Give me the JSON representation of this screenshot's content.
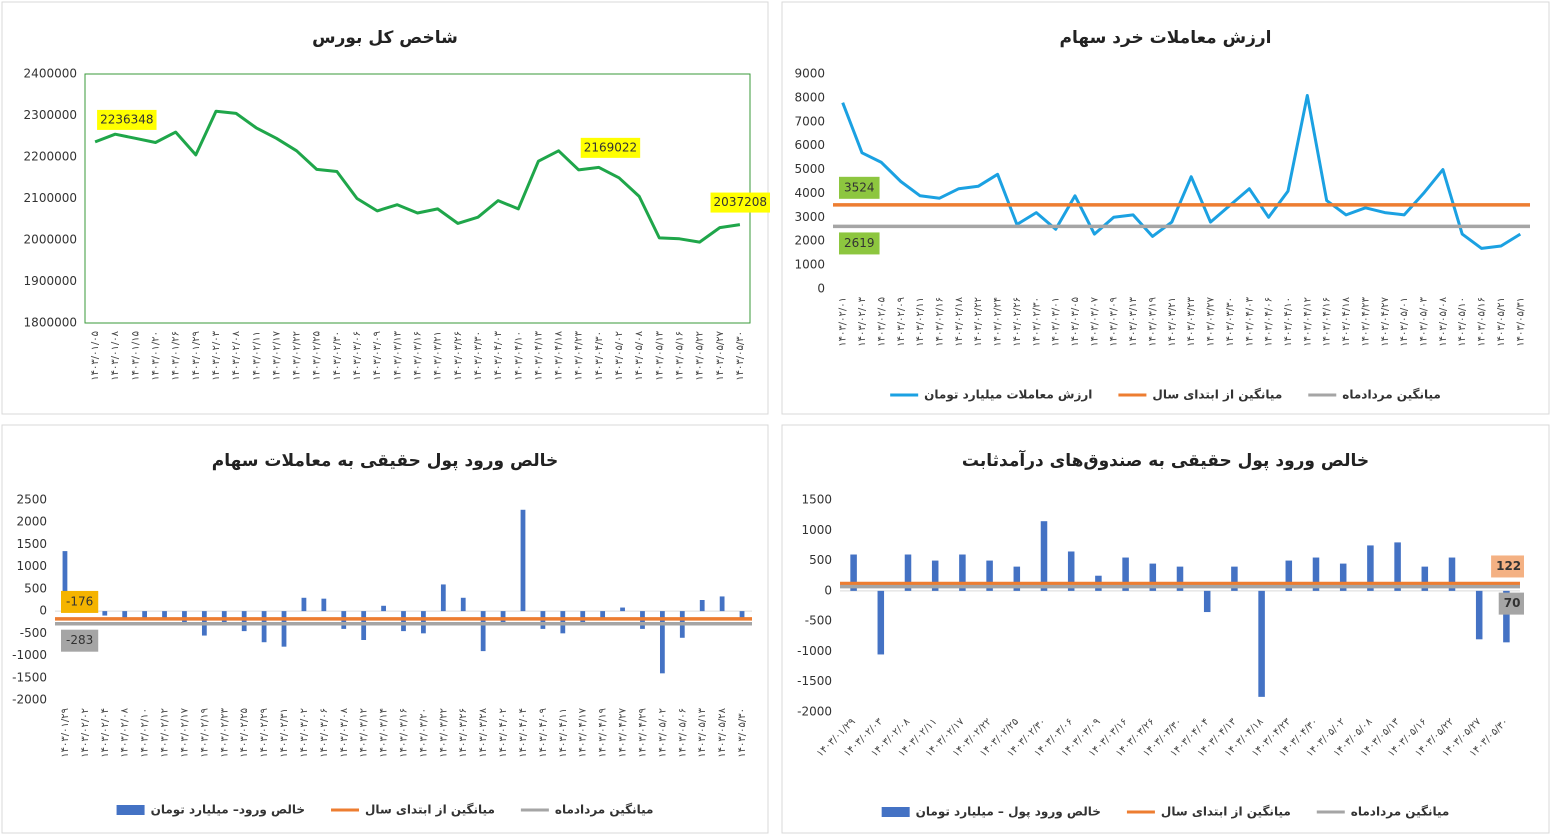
{
  "chart_data": [
    {
      "type": "line",
      "title": "شاخص کل بورس",
      "categories": [
        "۱۴۰۳/۰۱/۰۵",
        "۱۴۰۳/۰۱/۰۸",
        "۱۴۰۳/۰۱/۱۵",
        "۱۴۰۳/۰۱/۲۰",
        "۱۴۰۳/۰۱/۲۶",
        "۱۴۰۳/۰۱/۲۹",
        "۱۴۰۳/۰۲/۰۳",
        "۱۴۰۳/۰۲/۰۸",
        "۱۴۰۳/۰۲/۱۱",
        "۱۴۰۳/۰۲/۱۷",
        "۱۴۰۳/۰۲/۲۲",
        "۱۴۰۳/۰۲/۲۵",
        "۱۴۰۳/۰۲/۳۰",
        "۱۴۰۳/۰۳/۰۶",
        "۱۴۰۳/۰۳/۰۹",
        "۱۴۰۳/۰۳/۱۳",
        "۱۴۰۳/۰۳/۱۶",
        "۱۴۰۳/۰۳/۲۱",
        "۱۴۰۳/۰۳/۲۶",
        "۱۴۰۳/۰۳/۳۰",
        "۱۴۰۳/۰۴/۰۳",
        "۱۴۰۳/۰۴/۱۰",
        "۱۴۰۳/۰۴/۱۳",
        "۱۴۰۳/۰۴/۱۸",
        "۱۴۰۳/۰۴/۲۳",
        "۱۴۰۳/۰۴/۳۰",
        "۱۴۰۳/۰۵/۰۲",
        "۱۴۰۳/۰۵/۰۸",
        "۱۴۰۳/۰۵/۱۳",
        "۱۴۰۳/۰۵/۱۶",
        "۱۴۰۳/۰۵/۲۲",
        "۱۴۰۳/۰۵/۲۷",
        "۱۴۰۳/۰۵/۳۰"
      ],
      "series": [
        {
          "color": "#1fa64a",
          "values": [
            2236348,
            2255000,
            2245000,
            2235000,
            2260000,
            2205000,
            2310000,
            2305000,
            2270000,
            2245000,
            2215000,
            2170000,
            2165000,
            2100000,
            2070000,
            2085000,
            2065000,
            2075000,
            2040000,
            2055000,
            2095000,
            2075000,
            2190000,
            2215000,
            2169022,
            2175000,
            2150000,
            2105000,
            2005000,
            2003000,
            1995000,
            2030000,
            2037208
          ],
          "value_labels": [
            "2236348",
            null,
            null,
            null,
            null,
            null,
            null,
            null,
            null,
            null,
            null,
            null,
            null,
            null,
            null,
            null,
            null,
            null,
            null,
            null,
            null,
            null,
            null,
            null,
            "2169022",
            null,
            null,
            null,
            null,
            null,
            null,
            null,
            "2037208"
          ]
        }
      ],
      "ylim": [
        1800000,
        2400000
      ],
      "yticks": [
        1800000,
        1900000,
        2000000,
        2100000,
        2200000,
        2300000,
        2400000
      ],
      "plot_border": "#3a9a3a"
    },
    {
      "type": "line",
      "title": "ارزش معاملات خرد سهام",
      "categories": [
        "۱۴۰۳/۰۲/۰۱",
        "۱۴۰۳/۰۲/۰۳",
        "۱۴۰۳/۰۲/۰۵",
        "۱۴۰۳/۰۲/۰۹",
        "۱۴۰۳/۰۲/۱۱",
        "۱۴۰۳/۰۲/۱۶",
        "۱۴۰۳/۰۲/۱۸",
        "۱۴۰۳/۰۲/۲۲",
        "۱۴۰۳/۰۲/۲۴",
        "۱۴۰۳/۰۲/۲۶",
        "۱۴۰۳/۰۲/۳۰",
        "۱۴۰۳/۰۳/۰۱",
        "۱۴۰۳/۰۳/۰۵",
        "۱۴۰۳/۰۳/۰۷",
        "۱۴۰۳/۰۳/۰۹",
        "۱۴۰۳/۰۳/۱۳",
        "۱۴۰۳/۰۳/۱۹",
        "۱۴۰۳/۰۳/۲۱",
        "۱۴۰۳/۰۳/۲۳",
        "۱۴۰۳/۰۳/۲۷",
        "۱۴۰۳/۰۳/۳۰",
        "۱۴۰۳/۰۴/۰۳",
        "۱۴۰۳/۰۴/۰۶",
        "۱۴۰۳/۰۴/۱۰",
        "۱۴۰۳/۰۴/۱۲",
        "۱۴۰۳/۰۴/۱۶",
        "۱۴۰۳/۰۴/۱۸",
        "۱۴۰۳/۰۴/۲۳",
        "۱۴۰۳/۰۴/۲۷",
        "۱۴۰۳/۰۵/۰۱",
        "۱۴۰۳/۰۵/۰۳",
        "۱۴۰۳/۰۵/۰۸",
        "۱۴۰۳/۰۵/۱۰",
        "۱۴۰۳/۰۵/۱۶",
        "۱۴۰۳/۰۵/۲۱",
        "۱۴۰۳/۰۵/۳۱"
      ],
      "series": [
        {
          "name": "ارزش معاملات میلیارد تومان",
          "color": "#1ba1e2",
          "values": [
            7800,
            5700,
            5300,
            4500,
            3900,
            3800,
            4200,
            4300,
            4800,
            2700,
            3200,
            2500,
            3900,
            2300,
            3000,
            3100,
            2200,
            2800,
            4700,
            2800,
            3500,
            4200,
            3000,
            4100,
            8100,
            3700,
            3100,
            3400,
            3200,
            3100,
            4000,
            5000,
            2300,
            1700,
            1800,
            2300
          ]
        },
        {
          "name": "میانگین از ابتدای سال",
          "color": "#ed7d31",
          "value": 3524,
          "label_color": "#8dc63f"
        },
        {
          "name": "میانگین مردادماه",
          "color": "#a5a5a5",
          "value": 2619,
          "label_color": "#8dc63f"
        }
      ],
      "ylim": [
        0,
        9000
      ],
      "yticks": [
        0,
        1000,
        2000,
        3000,
        4000,
        5000,
        6000,
        7000,
        8000,
        9000
      ]
    },
    {
      "type": "bar",
      "title": "خالص ورود پول حقیقی به معاملات سهام",
      "categories": [
        "۱۴۰۳/۰۱/۲۹",
        "۱۴۰۳/۰۲/۰۲",
        "۱۴۰۳/۰۲/۰۴",
        "۱۴۰۳/۰۲/۰۸",
        "۱۴۰۳/۰۲/۱۰",
        "۱۴۰۳/۰۲/۱۲",
        "۱۴۰۳/۰۲/۱۷",
        "۱۴۰۳/۰۲/۱۹",
        "۱۴۰۳/۰۲/۲۳",
        "۱۴۰۳/۰۲/۲۵",
        "۱۴۰۳/۰۲/۲۹",
        "۱۴۰۳/۰۲/۳۱",
        "۱۴۰۳/۰۳/۰۲",
        "۱۴۰۳/۰۳/۰۶",
        "۱۴۰۳/۰۳/۰۸",
        "۱۴۰۳/۰۳/۱۲",
        "۱۴۰۳/۰۳/۱۴",
        "۱۴۰۳/۰۳/۱۶",
        "۱۴۰۳/۰۳/۲۰",
        "۱۴۰۳/۰۳/۲۲",
        "۱۴۰۳/۰۳/۲۶",
        "۱۴۰۳/۰۳/۲۸",
        "۱۴۰۳/۰۴/۰۲",
        "۱۴۰۳/۰۴/۰۴",
        "۱۴۰۳/۰۴/۰۹",
        "۱۴۰۳/۰۴/۱۱",
        "۱۴۰۳/۰۴/۱۷",
        "۱۴۰۳/۰۴/۱۹",
        "۱۴۰۳/۰۴/۲۷",
        "۱۴۰۳/۰۴/۲۹",
        "۱۴۰۳/۰۵/۰۲",
        "۱۴۰۳/۰۵/۰۶",
        "۱۴۰۳/۰۵/۱۳",
        "۱۴۰۳/۰۵/۲۸",
        "۱۴۰۳/۰۵/۳۰"
      ],
      "series": [
        {
          "name": "خالص ورود– میلیارد تومان",
          "color": "#4472c4",
          "values": [
            1350,
            150,
            -100,
            -150,
            -200,
            -150,
            -300,
            -550,
            -250,
            -450,
            -700,
            -800,
            300,
            280,
            -400,
            -650,
            120,
            -450,
            -500,
            600,
            300,
            -900,
            -250,
            2280,
            -400,
            -500,
            -300,
            -200,
            80,
            -400,
            -1400,
            -600,
            250,
            330,
            -200
          ]
        },
        {
          "name": "میانگین از ابتدای سال",
          "color": "#ed7d31",
          "value": -176,
          "label_color": "#f5b400"
        },
        {
          "name": "میانگین مردادماه",
          "color": "#a5a5a5",
          "value": -283,
          "label_color": "#a5a5a5"
        }
      ],
      "ylim": [
        -2000,
        2500
      ],
      "yticks": [
        -2000,
        -1500,
        -1000,
        -500,
        0,
        500,
        1000,
        1500,
        2000,
        2500
      ]
    },
    {
      "type": "bar",
      "title": "خالص ورود پول حقیقی به صندوق‌های درآمدثابت",
      "categories": [
        "۱۴۰۳/۰۱/۲۹",
        "۱۴۰۳/۰۲/۰۳",
        "۱۴۰۳/۰۲/۰۸",
        "۱۴۰۳/۰۲/۱۱",
        "۱۴۰۳/۰۲/۱۷",
        "۱۴۰۳/۰۲/۲۲",
        "۱۴۰۳/۰۲/۲۵",
        "۱۴۰۳/۰۲/۳۰",
        "۱۴۰۳/۰۳/۰۶",
        "۱۴۰۳/۰۳/۰۹",
        "۱۴۰۳/۰۳/۱۶",
        "۱۴۰۳/۰۳/۲۶",
        "۱۴۰۳/۰۳/۳۰",
        "۱۴۰۳/۰۴/۰۴",
        "۱۴۰۳/۰۴/۱۳",
        "۱۴۰۳/۰۴/۱۸",
        "۱۴۰۳/۰۴/۲۳",
        "۱۴۰۳/۰۴/۳۰",
        "۱۴۰۳/۰۵/۰۲",
        "۱۴۰۳/۰۵/۰۸",
        "۱۴۰۳/۰۵/۱۳",
        "۱۴۰۳/۰۵/۱۶",
        "۱۴۰۳/۰۵/۲۲",
        "۱۴۰۳/۰۵/۲۷",
        "۱۴۰۳/۰۵/۳۰"
      ],
      "series": [
        {
          "name": "خالص ورود پول – میلیارد تومان",
          "color": "#4472c4",
          "values": [
            600,
            -1050,
            600,
            500,
            600,
            500,
            400,
            1150,
            650,
            250,
            550,
            450,
            400,
            -350,
            400,
            -1750,
            500,
            550,
            450,
            750,
            800,
            400,
            550,
            -800,
            -850
          ]
        },
        {
          "name": "میانگین از ابتدای سال",
          "color": "#ed7d31",
          "value": 122,
          "label_color": "#f4b183"
        },
        {
          "name": "میانگین مردادماه",
          "color": "#a5a5a5",
          "value": 70,
          "label_color": "#a5a5a5"
        }
      ],
      "ylim": [
        -2000,
        1500
      ],
      "yticks": [
        -2000,
        -1500,
        -1000,
        -500,
        0,
        500,
        1000,
        1500
      ]
    }
  ]
}
